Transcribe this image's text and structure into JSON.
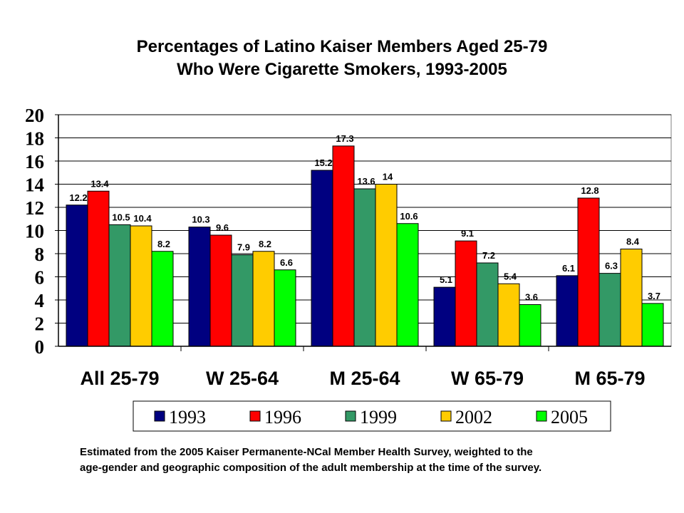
{
  "title_line1": "Percentages of Latino Kaiser Members Aged 25-79",
  "title_line2": "Who Were Cigarette Smokers, 1993-2005",
  "footnote_line1": "Estimated from the 2005 Kaiser Permanente-NCal Member Health Survey, weighted to the",
  "footnote_line2": "age-gender and geographic composition of the adult membership at the time of the survey.",
  "chart_data": {
    "type": "bar",
    "title": "Percentages of Latino Kaiser Members Aged 25-79 Who Were Cigarette Smokers, 1993-2005",
    "categories": [
      "All 25-79",
      "W 25-64",
      "M 25-64",
      "W 65-79",
      "M 65-79"
    ],
    "series": [
      {
        "name": "1993",
        "color": "#000080",
        "values": [
          12.2,
          10.3,
          15.2,
          5.1,
          6.1
        ],
        "labels": [
          "12.2",
          "10.3",
          "15.2",
          "5.1",
          "6.1"
        ]
      },
      {
        "name": "1996",
        "color": "#ff0000",
        "values": [
          13.4,
          9.6,
          17.3,
          9.1,
          12.8
        ],
        "labels": [
          "13.4",
          "9.6",
          "17.3",
          "9.1",
          "12.8"
        ]
      },
      {
        "name": "1999",
        "color": "#339966",
        "values": [
          10.5,
          7.9,
          13.6,
          7.2,
          6.3
        ],
        "labels": [
          "10.5",
          "7.9",
          "13.6",
          "7.2",
          "6.3"
        ]
      },
      {
        "name": "2002",
        "color": "#ffcc00",
        "values": [
          10.4,
          8.2,
          14,
          5.4,
          8.4
        ],
        "labels": [
          "10.4",
          "8.2",
          "14",
          "5.4",
          "8.4"
        ]
      },
      {
        "name": "2005",
        "color": "#00ff00",
        "values": [
          8.2,
          6.6,
          10.6,
          3.6,
          3.7
        ],
        "labels": [
          "8.2",
          "6.6",
          "10.6",
          "3.6",
          "3.7"
        ]
      }
    ],
    "ylim": [
      0,
      20
    ],
    "yticks": [
      "0",
      "2",
      "4",
      "6",
      "8",
      "10",
      "12",
      "14",
      "16",
      "18",
      "20"
    ],
    "grid": true,
    "legend_position": "bottom"
  }
}
